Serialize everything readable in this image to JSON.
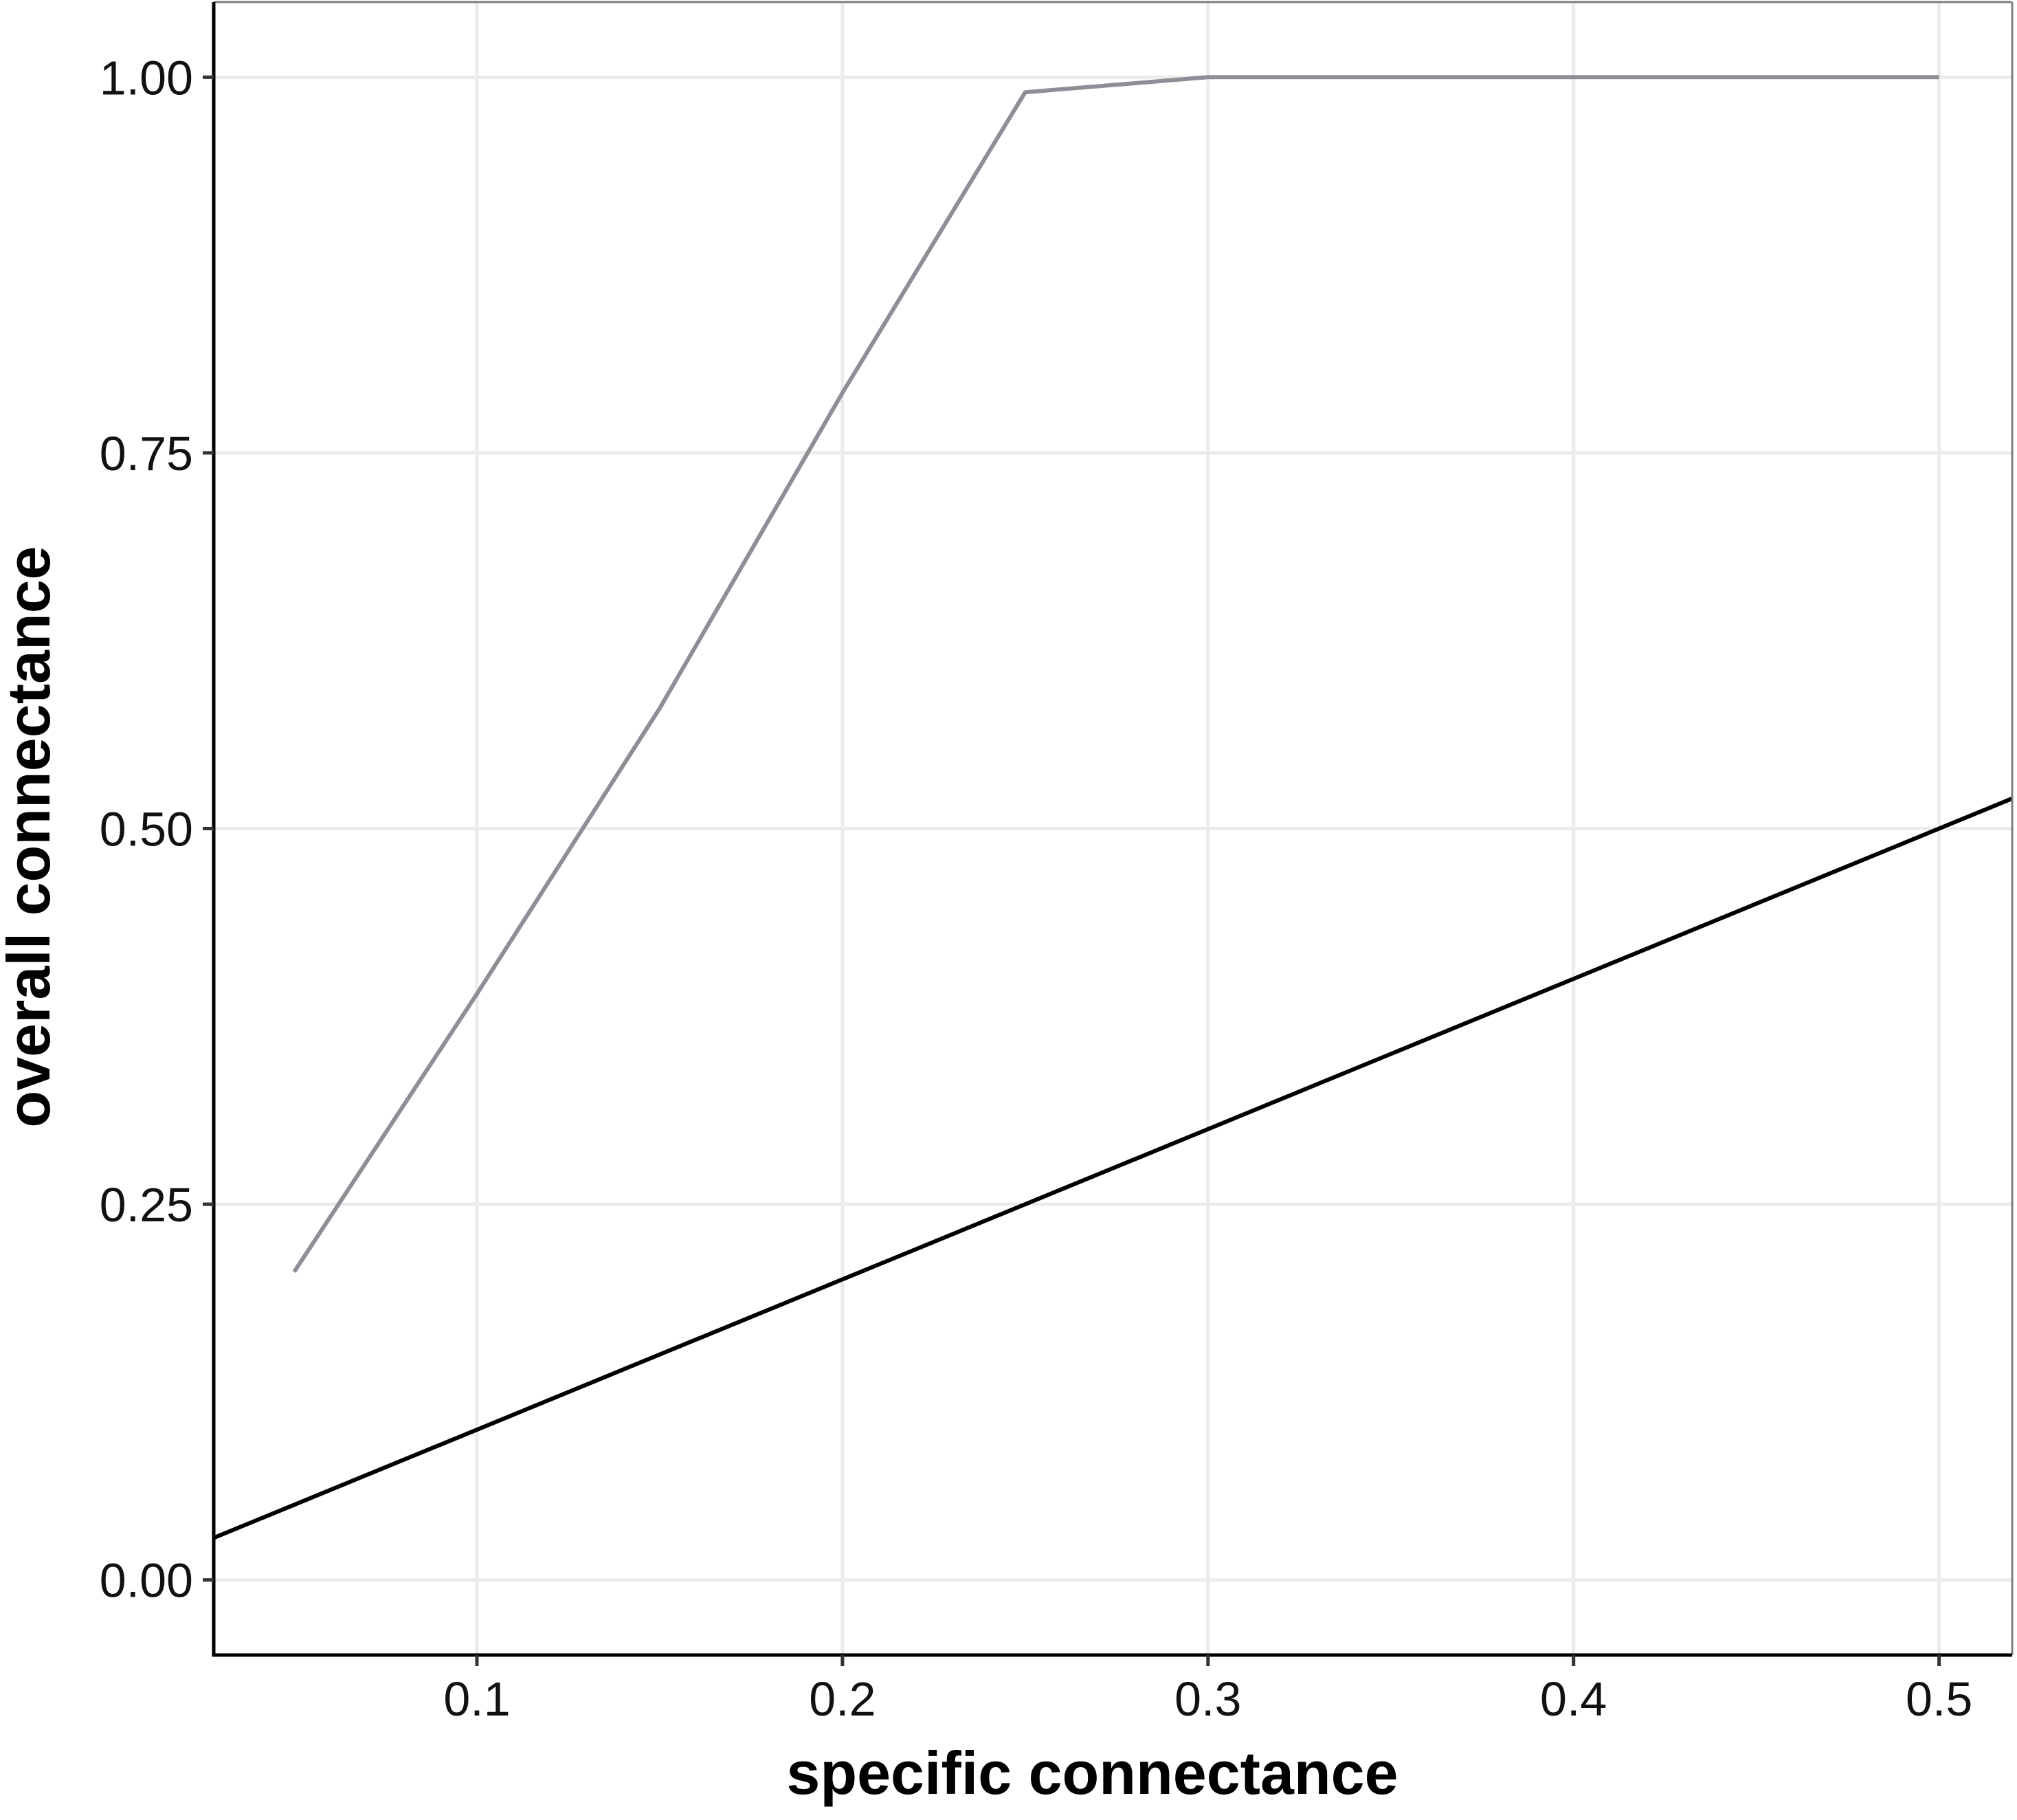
{
  "chart_data": {
    "type": "line",
    "title": "",
    "xlabel": "specific connectance",
    "ylabel": "overall connectance",
    "xlim": [
      0.028,
      0.52
    ],
    "ylim": [
      -0.05,
      1.05
    ],
    "xticks": [
      0.1,
      0.2,
      0.3,
      0.4,
      0.5
    ],
    "xtick_labels": [
      "0.1",
      "0.2",
      "0.3",
      "0.4",
      "0.5"
    ],
    "yticks": [
      0.0,
      0.25,
      0.5,
      0.75,
      1.0
    ],
    "ytick_labels": [
      "0.00",
      "0.25",
      "0.50",
      "0.75",
      "1.00"
    ],
    "grid": true,
    "legend": "none",
    "series": [
      {
        "color": "#8e8e96",
        "x": [
          0.05,
          0.1,
          0.15,
          0.2,
          0.25,
          0.3,
          0.35,
          0.4,
          0.45,
          0.5
        ],
        "y": [
          0.205,
          0.39,
          0.58,
          0.79,
          0.99,
          1.0,
          1.0,
          1.0,
          1.0,
          1.0
        ]
      },
      {
        "color": "#000000",
        "x": [
          0.028,
          0.52
        ],
        "y": [
          0.028,
          0.52
        ]
      }
    ]
  }
}
